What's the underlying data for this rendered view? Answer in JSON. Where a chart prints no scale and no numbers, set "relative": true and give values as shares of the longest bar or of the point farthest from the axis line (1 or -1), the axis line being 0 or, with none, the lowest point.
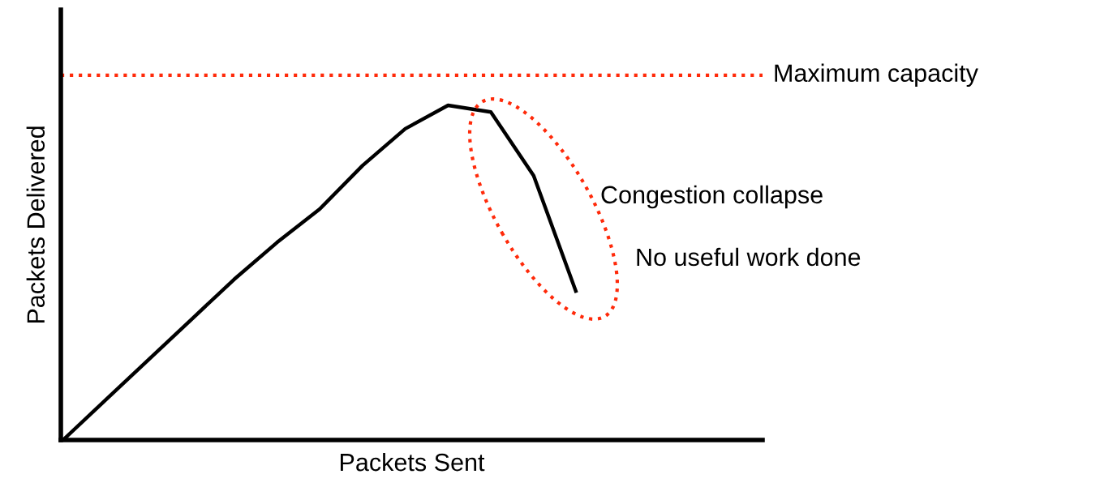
{
  "chart_data": {
    "type": "line",
    "relative": true,
    "xlabel": "Packets Sent",
    "ylabel": "Packets Delivered",
    "categories": [
      null,
      null,
      null,
      null,
      null,
      null,
      null,
      null,
      null,
      null,
      null,
      null,
      null,
      null,
      null,
      null,
      null
    ],
    "series": [
      {
        "color": "#000000",
        "values": [
          0,
          0.12,
          0.24,
          0.36,
          0.48,
          0.59,
          0.69,
          0.82,
          0.93,
          1.0,
          0.98,
          0.79,
          0.44,
          null,
          null,
          null,
          null
        ]
      }
    ],
    "ref_lines": [
      {
        "axis": "y",
        "value": 1.09,
        "label": "Maximum capacity",
        "color": "#ff2a0a",
        "line_style": "dotted"
      }
    ],
    "annotations": [
      "Congestion collapse",
      "No useful work done"
    ],
    "marker": "none",
    "line_style": "solid",
    "grid": false,
    "legend": false
  }
}
